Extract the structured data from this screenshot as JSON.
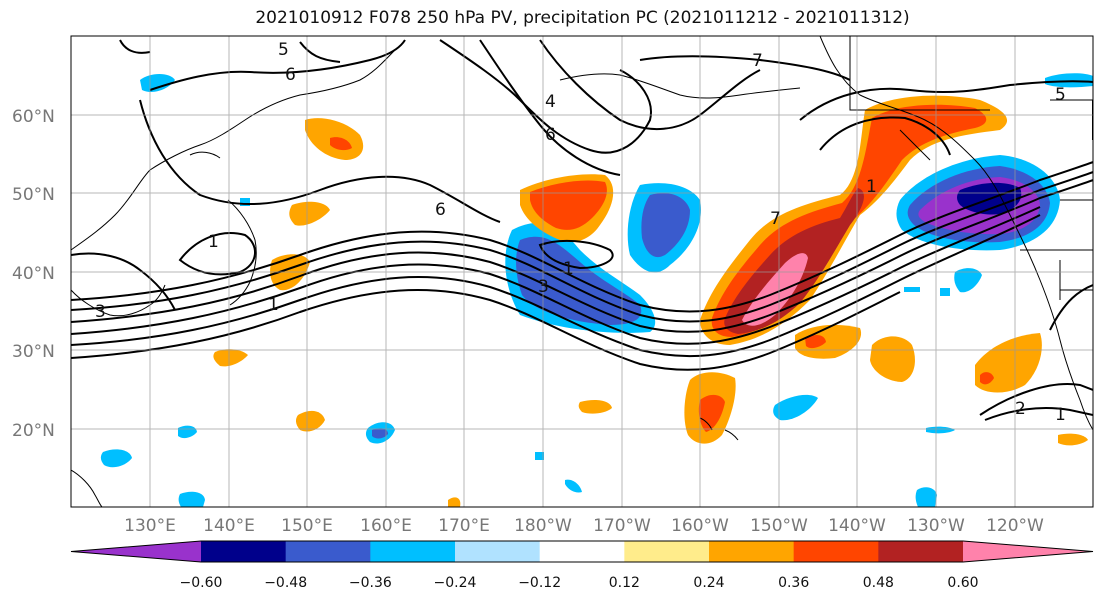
{
  "title": "2021010912 F078 250 hPa PV, precipitation PC (2021011212 - 2021011312)",
  "map": {
    "lon_labels": [
      "130°E",
      "140°E",
      "150°E",
      "160°E",
      "170°E",
      "180°W",
      "170°W",
      "160°W",
      "150°W",
      "140°W",
      "130°W",
      "120°W"
    ],
    "lat_labels": [
      "20°N",
      "30°N",
      "40°N",
      "50°N",
      "60°N"
    ],
    "pv_contour_labels": [
      "5",
      "6",
      "7",
      "4",
      "6",
      "6",
      "1",
      "7",
      "1",
      "3",
      "3",
      "1",
      "1",
      "2",
      "1",
      "5"
    ]
  },
  "colorbar": {
    "colors": [
      "#9932CC",
      "#00008B",
      "#3A5BCD",
      "#00BFFF",
      "#B0E2FF",
      "#FFFFFF",
      "#FFEC8B",
      "#FFA500",
      "#FF4500",
      "#B22222",
      "#FF82AB"
    ],
    "tick_labels": [
      "−0.60",
      "−0.48",
      "−0.36",
      "−0.24",
      "−0.12",
      "0.12",
      "0.24",
      "0.36",
      "0.48",
      "0.60"
    ]
  }
}
